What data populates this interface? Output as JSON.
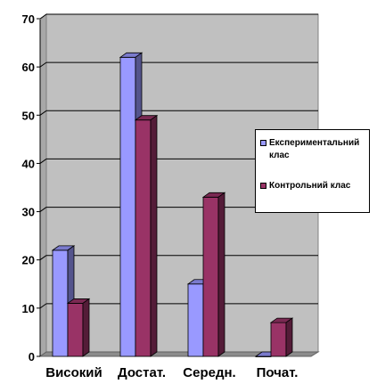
{
  "chart_data": {
    "type": "bar",
    "categories": [
      "Високий",
      "Достат.",
      "Середн.",
      "Почат."
    ],
    "series": [
      {
        "name": "Експериментальний клас",
        "values": [
          22,
          62,
          15,
          0
        ],
        "color": "#9999ff"
      },
      {
        "name": "Контрольний клас",
        "values": [
          11,
          49,
          33,
          7
        ],
        "color": "#993366"
      }
    ],
    "ylim": [
      0,
      70
    ],
    "yticks": [
      "0",
      "10",
      "20",
      "30",
      "40",
      "50",
      "60",
      "70"
    ],
    "grid": true,
    "legend": "right",
    "plot_background": "#c0c0c0"
  }
}
